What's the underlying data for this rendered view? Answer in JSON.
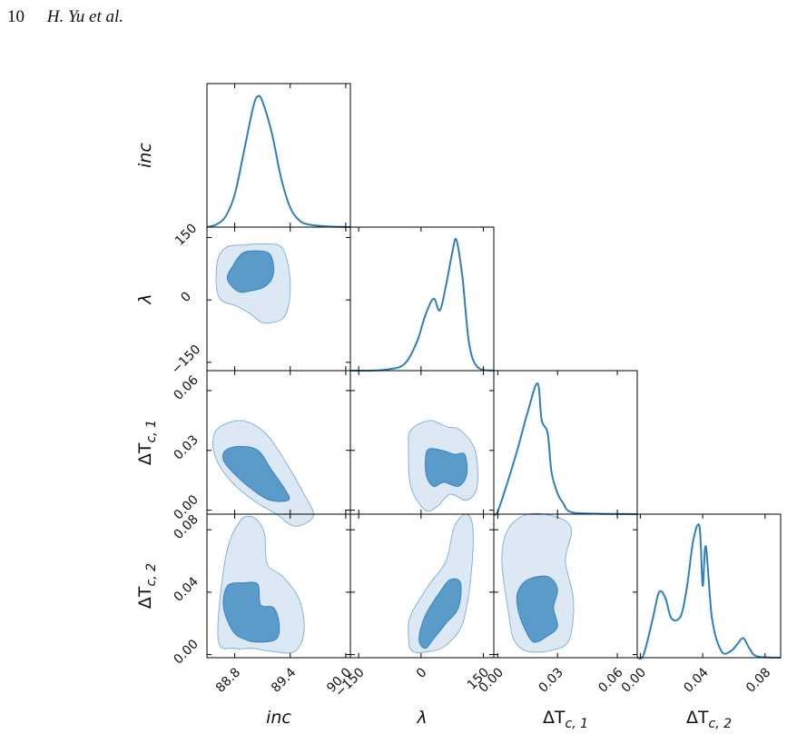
{
  "header": {
    "page_number": "10",
    "authors": "H. Yu et al."
  },
  "chart_data": {
    "type": "corner",
    "title": "",
    "colors": {
      "line": "#2f7fbc",
      "fill_inner": "#5b9bc9",
      "fill_outer": "#dce8f3",
      "frame": "#000000"
    },
    "parameters": [
      {
        "name": "inc",
        "ticks": [
          "88.8",
          "89.4",
          "90.0"
        ],
        "range": [
          88.5,
          90.05
        ]
      },
      {
        "name": "λ",
        "ticks": [
          "−150",
          "0",
          "150"
        ],
        "range": [
          -170,
          175
        ]
      },
      {
        "name": "ΔT_c,1",
        "ticks": [
          "0.00",
          "0.03",
          "0.06"
        ],
        "range": [
          -0.002,
          0.07
        ]
      },
      {
        "name": "ΔT_c,2",
        "ticks": [
          "0.00",
          "0.04",
          "0.08"
        ],
        "range": [
          -0.002,
          0.09
        ]
      }
    ],
    "marginals": [
      {
        "parameter": "inc",
        "peak": 89.05,
        "x": [
          88.5,
          88.6,
          88.7,
          88.8,
          88.9,
          89.0,
          89.05,
          89.1,
          89.2,
          89.3,
          89.4,
          89.5,
          89.6,
          89.8,
          90.05
        ],
        "density": [
          0.0,
          0.02,
          0.08,
          0.25,
          0.58,
          0.92,
          1.0,
          0.96,
          0.72,
          0.38,
          0.15,
          0.05,
          0.02,
          0.005,
          0.0
        ]
      },
      {
        "parameter": "λ",
        "peak": 85,
        "x": [
          -170,
          -120,
          -80,
          -40,
          -10,
          10,
          30,
          45,
          60,
          75,
          85,
          100,
          115,
          135,
          175
        ],
        "density": [
          0.0,
          0.0,
          0.01,
          0.05,
          0.22,
          0.42,
          0.55,
          0.46,
          0.65,
          0.9,
          1.0,
          0.7,
          0.22,
          0.03,
          0.0
        ]
      },
      {
        "parameter": "ΔT_c,1",
        "peak": 0.02,
        "x": [
          -0.002,
          0.0,
          0.005,
          0.01,
          0.015,
          0.02,
          0.022,
          0.025,
          0.027,
          0.03,
          0.033,
          0.036,
          0.045,
          0.07
        ],
        "density": [
          0.0,
          0.02,
          0.25,
          0.5,
          0.78,
          1.0,
          0.72,
          0.62,
          0.32,
          0.16,
          0.08,
          0.02,
          0.005,
          0.0
        ]
      },
      {
        "parameter": "ΔT_c,2",
        "peak": 0.038,
        "x": [
          -0.002,
          0.002,
          0.008,
          0.012,
          0.016,
          0.02,
          0.026,
          0.03,
          0.034,
          0.038,
          0.04,
          0.042,
          0.046,
          0.052,
          0.058,
          0.062,
          0.066,
          0.07,
          0.075,
          0.09
        ],
        "density": [
          0.0,
          0.02,
          0.3,
          0.5,
          0.46,
          0.3,
          0.32,
          0.55,
          0.9,
          1.0,
          0.55,
          0.85,
          0.3,
          0.05,
          0.05,
          0.1,
          0.15,
          0.07,
          0.01,
          0.0
        ]
      }
    ],
    "joint": [
      {
        "x": "inc",
        "y": "λ",
        "outer": [
          [
            88.62,
            100
          ],
          [
            88.72,
            128
          ],
          [
            88.9,
            132
          ],
          [
            89.1,
            135
          ],
          [
            89.3,
            128
          ],
          [
            89.38,
            80
          ],
          [
            89.4,
            20
          ],
          [
            89.36,
            -30
          ],
          [
            89.28,
            -50
          ],
          [
            89.1,
            -55
          ],
          [
            88.98,
            -35
          ],
          [
            88.82,
            -15
          ],
          [
            88.65,
            0
          ],
          [
            88.6,
            40
          ]
        ],
        "inner": [
          [
            88.72,
            50
          ],
          [
            88.78,
            82
          ],
          [
            88.88,
            112
          ],
          [
            89.02,
            118
          ],
          [
            89.17,
            112
          ],
          [
            89.22,
            82
          ],
          [
            89.2,
            50
          ],
          [
            89.11,
            30
          ],
          [
            88.98,
            22
          ],
          [
            88.84,
            20
          ]
        ]
      },
      {
        "x": "inc",
        "y": "ΔT_c,1",
        "outer": [
          [
            88.6,
            0.04
          ],
          [
            88.85,
            0.045
          ],
          [
            89.1,
            0.04
          ],
          [
            89.3,
            0.028
          ],
          [
            89.55,
            0.008
          ],
          [
            89.65,
            -0.003
          ],
          [
            89.45,
            -0.008
          ],
          [
            89.25,
            -0.002
          ],
          [
            89.0,
            0.005
          ],
          [
            88.75,
            0.015
          ],
          [
            88.58,
            0.028
          ]
        ],
        "inner": [
          [
            88.7,
            0.03
          ],
          [
            88.85,
            0.032
          ],
          [
            89.05,
            0.03
          ],
          [
            89.2,
            0.02
          ],
          [
            89.35,
            0.01
          ],
          [
            89.38,
            0.005
          ],
          [
            89.18,
            0.005
          ],
          [
            89.0,
            0.01
          ],
          [
            88.8,
            0.018
          ],
          [
            88.68,
            0.025
          ]
        ]
      },
      {
        "x": "inc",
        "y": "ΔT_c,2",
        "outer": [
          [
            88.62,
            0.01
          ],
          [
            88.7,
            0.062
          ],
          [
            88.85,
            0.085
          ],
          [
            89.0,
            0.088
          ],
          [
            89.12,
            0.078
          ],
          [
            89.15,
            0.058
          ],
          [
            89.32,
            0.05
          ],
          [
            89.5,
            0.035
          ],
          [
            89.55,
            0.015
          ],
          [
            89.45,
            0.002
          ],
          [
            89.2,
            0.002
          ],
          [
            89.0,
            0.004
          ],
          [
            88.8,
            0.004
          ]
        ],
        "inner": [
          [
            88.68,
            0.03
          ],
          [
            88.72,
            0.044
          ],
          [
            88.9,
            0.046
          ],
          [
            89.05,
            0.045
          ],
          [
            89.08,
            0.032
          ],
          [
            89.22,
            0.03
          ],
          [
            89.28,
            0.02
          ],
          [
            89.25,
            0.01
          ],
          [
            89.05,
            0.008
          ],
          [
            88.9,
            0.01
          ],
          [
            88.78,
            0.015
          ]
        ]
      },
      {
        "x": "λ",
        "y": "ΔT_c,1",
        "outer": [
          [
            -25,
            0.04
          ],
          [
            20,
            0.045
          ],
          [
            60,
            0.042
          ],
          [
            95,
            0.04
          ],
          [
            130,
            0.03
          ],
          [
            135,
            0.012
          ],
          [
            110,
            0.005
          ],
          [
            70,
            0.008
          ],
          [
            40,
            0.002
          ],
          [
            10,
            0.0
          ],
          [
            -25,
            0.012
          ],
          [
            -30,
            0.03
          ]
        ],
        "inner": [
          [
            15,
            0.03
          ],
          [
            50,
            0.03
          ],
          [
            80,
            0.028
          ],
          [
            105,
            0.028
          ],
          [
            110,
            0.018
          ],
          [
            90,
            0.012
          ],
          [
            55,
            0.014
          ],
          [
            30,
            0.012
          ],
          [
            12,
            0.018
          ]
        ]
      },
      {
        "x": "λ",
        "y": "ΔT_c,2",
        "outer": [
          [
            -30,
            0.01
          ],
          [
            -25,
            0.025
          ],
          [
            20,
            0.045
          ],
          [
            60,
            0.06
          ],
          [
            80,
            0.082
          ],
          [
            110,
            0.09
          ],
          [
            125,
            0.08
          ],
          [
            120,
            0.05
          ],
          [
            100,
            0.02
          ],
          [
            60,
            0.006
          ],
          [
            20,
            0.002
          ],
          [
            -20,
            0.002
          ]
        ],
        "inner": [
          [
            -5,
            0.01
          ],
          [
            10,
            0.025
          ],
          [
            45,
            0.04
          ],
          [
            70,
            0.048
          ],
          [
            95,
            0.046
          ],
          [
            90,
            0.03
          ],
          [
            60,
            0.02
          ],
          [
            30,
            0.01
          ],
          [
            10,
            0.004
          ]
        ]
      },
      {
        "x": "ΔT_c,1",
        "y": "ΔT_c,2",
        "outer": [
          [
            0.005,
            0.08
          ],
          [
            0.015,
            0.09
          ],
          [
            0.03,
            0.088
          ],
          [
            0.037,
            0.08
          ],
          [
            0.034,
            0.06
          ],
          [
            0.038,
            0.035
          ],
          [
            0.036,
            0.01
          ],
          [
            0.028,
            0.003
          ],
          [
            0.015,
            0.002
          ],
          [
            0.008,
            0.01
          ],
          [
            0.005,
            0.03
          ],
          [
            0.002,
            0.06
          ]
        ],
        "inner": [
          [
            0.01,
            0.04
          ],
          [
            0.015,
            0.048
          ],
          [
            0.025,
            0.05
          ],
          [
            0.03,
            0.042
          ],
          [
            0.028,
            0.03
          ],
          [
            0.03,
            0.018
          ],
          [
            0.025,
            0.012
          ],
          [
            0.018,
            0.008
          ],
          [
            0.013,
            0.018
          ],
          [
            0.01,
            0.03
          ]
        ]
      }
    ]
  }
}
